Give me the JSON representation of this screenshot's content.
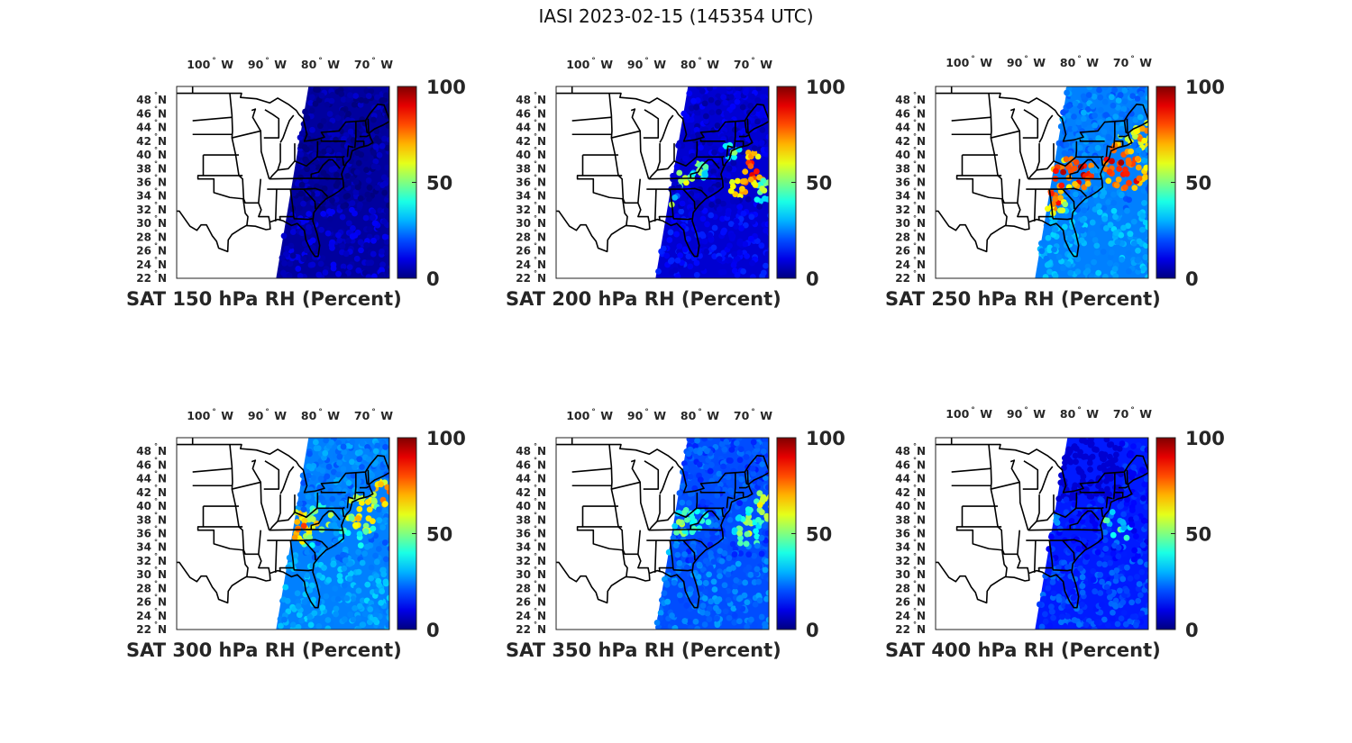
{
  "figure": {
    "title": "IASI 2023-02-15 (145354 UTC)"
  },
  "colorbar": {
    "colormap": "jet",
    "tick_labels": [
      "100",
      "50",
      "0"
    ],
    "tick_values": [
      100,
      50,
      0
    ],
    "range": [
      0,
      100
    ]
  },
  "axes": {
    "lon_labels": [
      "100",
      "90",
      "80",
      "70"
    ],
    "lon_hemisphere": "W",
    "lat_labels": [
      "48",
      "46",
      "44",
      "42",
      "40",
      "38",
      "36",
      "34",
      "32",
      "30",
      "28",
      "26",
      "24",
      "22"
    ],
    "lat_hemisphere": "N",
    "degree_symbol": "°"
  },
  "panels": [
    {
      "title": "SAT 150 hPa RH (Percent)",
      "level_hPa": 150,
      "background_rh": 3
    },
    {
      "title": "SAT 200 hPa RH (Percent)",
      "level_hPa": 200,
      "background_rh": 8
    },
    {
      "title": "SAT 250 hPa RH (Percent)",
      "level_hPa": 250,
      "background_rh": 25
    },
    {
      "title": "SAT 300 hPa RH (Percent)",
      "level_hPa": 300,
      "background_rh": 25
    },
    {
      "title": "SAT 350 hPa RH (Percent)",
      "level_hPa": 350,
      "background_rh": 20
    },
    {
      "title": "SAT 400 hPa RH (Percent)",
      "level_hPa": 400,
      "background_rh": 15
    }
  ]
}
